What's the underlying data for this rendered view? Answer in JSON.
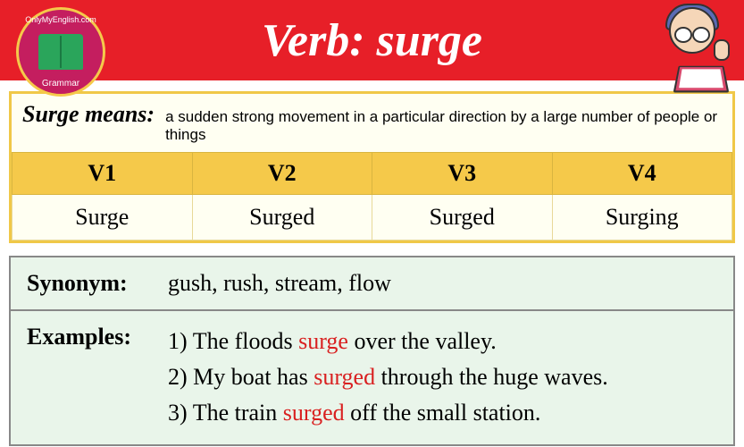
{
  "brand": {
    "top": "OnlyMyEnglish.com",
    "bottom": "Grammar"
  },
  "header": {
    "title": "Verb: surge"
  },
  "definition": {
    "label": "Surge means:",
    "text": "a sudden strong movement in a particular direction by a large number of people or things"
  },
  "forms": {
    "headers": [
      "V1",
      "V2",
      "V3",
      "V4"
    ],
    "values": [
      "Surge",
      "Surged",
      "Surged",
      "Surging"
    ]
  },
  "synonym": {
    "label": "Synonym:",
    "value": "gush, rush, stream, flow"
  },
  "examples": {
    "label": "Examples:",
    "items": [
      {
        "n": "1) ",
        "pre": "The floods ",
        "hl": "surge",
        "post": " over the valley."
      },
      {
        "n": "2) ",
        "pre": "My boat has ",
        "hl": "surged",
        "post": " through the huge waves."
      },
      {
        "n": "3) ",
        "pre": "The train ",
        "hl": "surged",
        "post": " off the small station."
      }
    ]
  },
  "colors": {
    "header_bg": "#e71f28",
    "accent_yellow": "#f5c94a",
    "badge_bg": "#c41e5f",
    "info_bg": "#e9f5ea",
    "highlight": "#d92020"
  }
}
